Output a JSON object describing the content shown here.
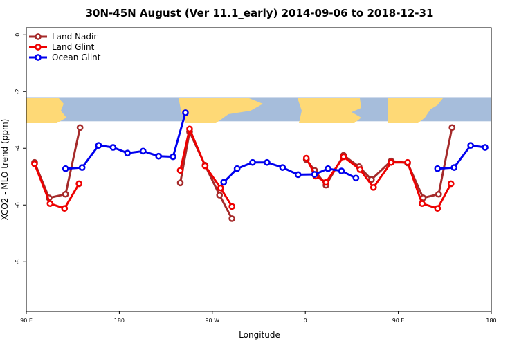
{
  "chart_data": {
    "type": "line",
    "title": "30N-45N August (Ver 11.1_early)   2014-09-06 to 2018-12-31",
    "xlabel": "Longitude",
    "ylabel": "XCO2 - MLO trend (ppm)",
    "x_ticks": [
      {
        "value": 90,
        "label": "90 E"
      },
      {
        "value": 180,
        "label": "180"
      },
      {
        "value": 270,
        "label": "90 W"
      },
      {
        "value": 360,
        "label": "0"
      },
      {
        "value": 450,
        "label": "90 E"
      },
      {
        "value": 540,
        "label": "180"
      }
    ],
    "y_ticks": [
      0,
      -2,
      -4,
      -6,
      -8
    ],
    "xlim": [
      90,
      540
    ],
    "ylim": [
      -9.75,
      0.25
    ],
    "grid": false,
    "legend_position": "top-left",
    "map_band": {
      "y_top": -2.2,
      "y_bottom": -3.05,
      "ocean_color": "#a6bddb",
      "land_color": "#fed976"
    },
    "series": [
      {
        "name": "Land Nadir",
        "color": "#a52a2a",
        "segments": [
          [
            [
              98,
              -4.5
            ],
            [
              112,
              -5.75
            ],
            [
              128,
              -5.62
            ],
            [
              142,
              -3.27
            ]
          ],
          [
            [
              239,
              -5.22
            ],
            [
              248,
              -3.42
            ],
            [
              263,
              -4.6
            ],
            [
              277,
              -5.65
            ],
            [
              289,
              -6.48
            ]
          ],
          [
            [
              361,
              -4.4
            ],
            [
              369,
              -4.78
            ],
            [
              380,
              -5.3
            ],
            [
              397,
              -4.25
            ],
            [
              412,
              -4.65
            ],
            [
              424,
              -5.1
            ],
            [
              443,
              -4.45
            ],
            [
              459,
              -4.52
            ],
            [
              474,
              -5.75
            ],
            [
              489,
              -5.62
            ],
            [
              502,
              -3.27
            ]
          ]
        ]
      },
      {
        "name": "Land Glint",
        "color": "#ee0000",
        "segments": [
          [
            [
              98,
              -4.55
            ],
            [
              113,
              -5.95
            ],
            [
              127,
              -6.12
            ],
            [
              141,
              -5.25
            ]
          ],
          [
            [
              239,
              -4.78
            ],
            [
              248,
              -3.32
            ],
            [
              263,
              -4.62
            ],
            [
              278,
              -5.4
            ],
            [
              289,
              -6.05
            ]
          ],
          [
            [
              361,
              -4.35
            ],
            [
              370,
              -4.98
            ],
            [
              380,
              -5.2
            ],
            [
              397,
              -4.3
            ],
            [
              413,
              -4.75
            ],
            [
              426,
              -5.38
            ],
            [
              443,
              -4.5
            ],
            [
              459,
              -4.5
            ],
            [
              473,
              -5.95
            ],
            [
              488,
              -6.12
            ],
            [
              501,
              -5.25
            ]
          ]
        ]
      },
      {
        "name": "Ocean Glint",
        "color": "#0000ee",
        "segments": [
          [
            [
              128,
              -4.72
            ],
            [
              144,
              -4.68
            ],
            [
              160,
              -3.9
            ],
            [
              174,
              -3.97
            ],
            [
              188,
              -4.17
            ],
            [
              203,
              -4.1
            ],
            [
              218,
              -4.28
            ],
            [
              232,
              -4.3
            ],
            [
              244,
              -2.75
            ]
          ],
          [
            [
              281,
              -5.2
            ],
            [
              294,
              -4.72
            ],
            [
              309,
              -4.5
            ],
            [
              323,
              -4.5
            ],
            [
              338,
              -4.68
            ],
            [
              353,
              -4.93
            ],
            [
              369,
              -4.92
            ],
            [
              382,
              -4.72
            ],
            [
              395,
              -4.8
            ],
            [
              409,
              -5.05
            ]
          ],
          [
            [
              488,
              -4.72
            ],
            [
              504,
              -4.68
            ],
            [
              520,
              -3.9
            ],
            [
              534,
              -3.97
            ]
          ]
        ]
      }
    ]
  }
}
